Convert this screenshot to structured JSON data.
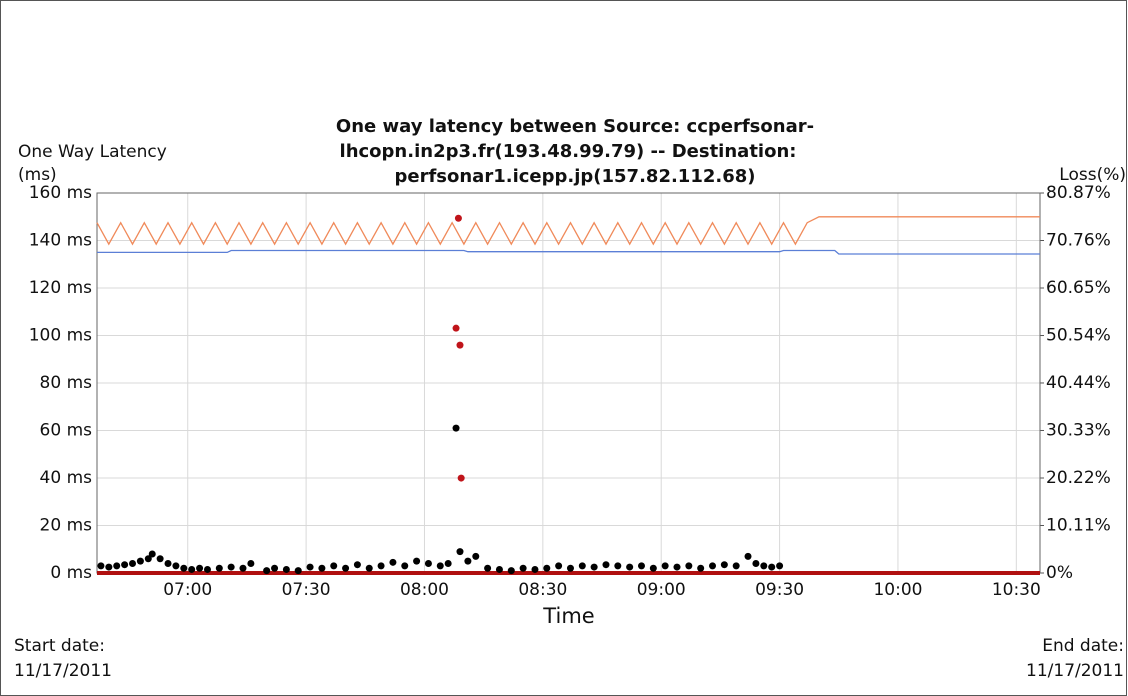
{
  "chart_data": {
    "type": "line",
    "title": [
      "One way latency between Source: ccperfsonar-",
      "lhcopn.in2p3.fr(193.48.99.79) -- Destination:",
      "perfsonar1.icepp.jp(157.82.112.68)"
    ],
    "y_label": [
      "One Way Latency",
      "(ms)"
    ],
    "y2_label": "Loss(%)",
    "x_label": "Time",
    "start_date_label": "Start date:",
    "start_date": "11/17/2011",
    "end_date_label": "End date:",
    "end_date": "11/17/2011",
    "grid": true,
    "xlim": [
      397,
      636
    ],
    "xticks": [
      {
        "value": 420,
        "label": "07:00"
      },
      {
        "value": 450,
        "label": "07:30"
      },
      {
        "value": 480,
        "label": "08:00"
      },
      {
        "value": 510,
        "label": "08:30"
      },
      {
        "value": 540,
        "label": "09:00"
      },
      {
        "value": 570,
        "label": "09:30"
      },
      {
        "value": 600,
        "label": "10:00"
      },
      {
        "value": 630,
        "label": "10:30"
      }
    ],
    "ylim": [
      0,
      160
    ],
    "yticks": [
      {
        "value": 0,
        "label": "0 ms"
      },
      {
        "value": 20,
        "label": "20 ms"
      },
      {
        "value": 40,
        "label": "40 ms"
      },
      {
        "value": 60,
        "label": "60 ms"
      },
      {
        "value": 80,
        "label": "80 ms"
      },
      {
        "value": 100,
        "label": "100 ms"
      },
      {
        "value": 120,
        "label": "120 ms"
      },
      {
        "value": 140,
        "label": "140 ms"
      },
      {
        "value": 160,
        "label": "160 ms"
      }
    ],
    "y2lim": [
      0,
      80.87
    ],
    "y2ticks": [
      {
        "value": 0,
        "label": "0%"
      },
      {
        "value": 10.11,
        "label": "10.11%"
      },
      {
        "value": 20.22,
        "label": "20.22%"
      },
      {
        "value": 30.33,
        "label": "30.33%"
      },
      {
        "value": 40.44,
        "label": "40.44%"
      },
      {
        "value": 50.54,
        "label": "50.54%"
      },
      {
        "value": 60.65,
        "label": "60.65%"
      },
      {
        "value": 70.76,
        "label": "70.76%"
      },
      {
        "value": 80.87,
        "label": "80.87%"
      }
    ],
    "series": [
      {
        "color": "#f08a5a",
        "mode": "line",
        "axis": "y",
        "x": [
          397,
          400,
          403,
          406,
          409,
          412,
          415,
          418,
          421,
          424,
          427,
          430,
          433,
          436,
          439,
          442,
          445,
          448,
          451,
          454,
          457,
          460,
          463,
          466,
          469,
          472,
          475,
          478,
          481,
          484,
          487,
          490,
          493,
          496,
          499,
          502,
          505,
          508,
          511,
          514,
          517,
          520,
          523,
          526,
          529,
          532,
          535,
          538,
          541,
          544,
          547,
          550,
          553,
          556,
          559,
          562,
          565,
          568,
          571,
          574,
          577,
          580,
          636
        ],
        "values": [
          147.5,
          138.5,
          147.5,
          138.5,
          147.5,
          138.5,
          147.5,
          138.5,
          147.5,
          138.5,
          147.5,
          138.5,
          147.5,
          138.5,
          147.5,
          138.5,
          147.5,
          138.5,
          147.5,
          138.5,
          147.5,
          138.5,
          147.5,
          138.5,
          147.5,
          138.5,
          147.5,
          138.5,
          147.5,
          138.5,
          147.5,
          138.5,
          147.5,
          138.5,
          147.5,
          138.5,
          147.5,
          138.5,
          147.5,
          138.5,
          147.5,
          138.5,
          147.5,
          138.5,
          147.5,
          138.5,
          147.5,
          138.5,
          147.5,
          138.5,
          147.5,
          138.5,
          147.5,
          138.5,
          147.5,
          138.5,
          147.5,
          138.5,
          147.5,
          138.5,
          147.5,
          150,
          150
        ]
      },
      {
        "color": "#5b7fd6",
        "mode": "line",
        "axis": "y",
        "x": [
          397,
          430,
          431,
          490,
          491,
          570,
          571,
          584,
          585,
          636
        ],
        "values": [
          135,
          135,
          135.8,
          135.8,
          135.3,
          135.3,
          135.8,
          135.8,
          134.3,
          134.3
        ]
      },
      {
        "color": "#b01010",
        "mode": "line",
        "axis": "y2",
        "x": [
          397,
          636
        ],
        "values": [
          0,
          0
        ]
      },
      {
        "color": "#000000",
        "mode": "markers",
        "axis": "y",
        "x": [
          398,
          400,
          402,
          404,
          406,
          408,
          410,
          411,
          413,
          415,
          417,
          419,
          421,
          423,
          425,
          428,
          431,
          434,
          436,
          440,
          442,
          445,
          448,
          451,
          454,
          457,
          460,
          463,
          466,
          469,
          472,
          475,
          478,
          481,
          484,
          486,
          488,
          489,
          491,
          493,
          496,
          499,
          502,
          505,
          508,
          511,
          514,
          517,
          520,
          523,
          526,
          529,
          532,
          535,
          538,
          541,
          544,
          547,
          550,
          553,
          556,
          559,
          562,
          564,
          566,
          568,
          570
        ],
        "values": [
          3,
          2.5,
          3,
          3.5,
          4,
          5,
          6,
          8,
          6,
          4,
          3,
          2,
          1.5,
          2,
          1.5,
          2,
          2.5,
          2,
          4,
          1,
          2,
          1.5,
          1,
          2.5,
          2,
          3,
          2,
          3.5,
          2,
          3,
          4.5,
          3,
          5,
          4,
          3,
          4,
          61,
          9,
          5,
          7,
          2,
          1.5,
          1,
          2,
          1.5,
          2,
          3,
          2,
          3,
          2.5,
          3.5,
          3,
          2.5,
          3,
          2,
          3,
          2.5,
          3,
          2,
          3,
          3.5,
          3,
          7,
          4,
          3,
          2.5,
          3
        ]
      },
      {
        "color": "#c0141a",
        "mode": "markers",
        "axis": "y2",
        "x": [
          488.6,
          488,
          489,
          489.3
        ],
        "values": [
          75.5,
          52.1,
          48.5,
          20.2
        ]
      }
    ]
  }
}
